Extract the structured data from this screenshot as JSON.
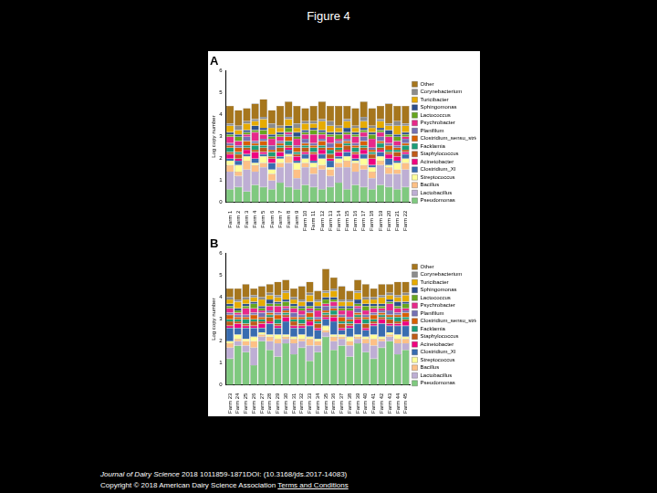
{
  "page": {
    "title": "Figure 4",
    "journal": "Journal of Dairy Science",
    "citation": "2018 1011859-1871DOI: (10.3168/jds.2017-14083)",
    "copyright": "Copyright © 2018 American Dairy Science Association",
    "link": "Terms and Conditions"
  },
  "chart_data": [
    {
      "type": "bar",
      "title": "A",
      "y_label": "Log copy number",
      "stacked": true,
      "grid": false,
      "legend": "right",
      "ylim": [
        0,
        6
      ],
      "yticks": [
        0,
        1,
        2,
        3,
        4,
        5,
        6
      ],
      "categories": [
        "Farm 1",
        "Farm 2",
        "Farm 3",
        "Farm 4",
        "Farm 5",
        "Farm 6",
        "Farm 7",
        "Farm 8",
        "Farm 9",
        "Farm 10",
        "Farm 11",
        "Farm 12",
        "Farm 13",
        "Farm 14",
        "Farm 15",
        "Farm 16",
        "Farm 17",
        "Farm 18",
        "Farm 19",
        "Farm 20",
        "Farm 21",
        "Farm 22"
      ],
      "series": [
        {
          "name": "Pseudomonas",
          "color": "#7fc97f",
          "values": [
            0.6,
            0.7,
            0.5,
            0.8,
            0.7,
            0.6,
            0.9,
            0.7,
            0.6,
            0.8,
            0.7,
            0.6,
            0.7,
            0.9,
            0.6,
            0.8,
            0.7,
            0.6,
            0.8,
            0.7,
            0.6,
            0.7
          ]
        },
        {
          "name": "Lactobacillus",
          "color": "#beaed4",
          "values": [
            0.8,
            0.5,
            1.0,
            0.6,
            0.9,
            0.4,
            0.7,
            1.1,
            0.5,
            0.8,
            0.6,
            0.9,
            0.5,
            0.7,
            1.0,
            0.6,
            0.8,
            0.5,
            0.9,
            0.6,
            0.7,
            0.8
          ]
        },
        {
          "name": "Bacillus",
          "color": "#fdc086",
          "values": [
            0.3,
            0.2,
            0.4,
            0.3,
            0.2,
            0.3,
            0.2,
            0.3,
            0.4,
            0.2,
            0.3,
            0.2,
            0.3,
            0.2,
            0.3,
            0.4,
            0.2,
            0.3,
            0.2,
            0.3,
            0.2,
            0.3
          ]
        },
        {
          "name": "Streptococcus",
          "color": "#ffff99",
          "values": [
            0.2,
            0.3,
            0.2,
            0.1,
            0.3,
            0.2,
            0.2,
            0.1,
            0.3,
            0.2,
            0.2,
            0.3,
            0.1,
            0.2,
            0.2,
            0.1,
            0.3,
            0.2,
            0.2,
            0.1,
            0.3,
            0.2
          ]
        },
        {
          "name": "Clostridium_XI",
          "color": "#386cb0",
          "values": [
            0.1,
            0.2,
            0.1,
            0.2,
            0.1,
            0.3,
            0.1,
            0.2,
            0.1,
            0.2,
            0.1,
            0.2,
            0.3,
            0.1,
            0.2,
            0.1,
            0.2,
            0.1,
            0.2,
            0.3,
            0.1,
            0.2
          ]
        },
        {
          "name": "Acinetobacter",
          "color": "#f0027f",
          "values": [
            0.2,
            0.1,
            0.2,
            0.3,
            0.1,
            0.2,
            0.2,
            0.1,
            0.2,
            0.1,
            0.3,
            0.2,
            0.1,
            0.2,
            0.1,
            0.2,
            0.2,
            0.3,
            0.1,
            0.2,
            0.2,
            0.1
          ]
        },
        {
          "name": "Staphylococcus",
          "color": "#bf5b17",
          "values": [
            0.1,
            0.2,
            0.1,
            0.1,
            0.2,
            0.1,
            0.2,
            0.1,
            0.1,
            0.2,
            0.1,
            0.1,
            0.2,
            0.1,
            0.2,
            0.1,
            0.1,
            0.2,
            0.1,
            0.1,
            0.2,
            0.1
          ]
        },
        {
          "name": "Facklamia",
          "color": "#1b9e77",
          "values": [
            0.2,
            0.1,
            0.1,
            0.2,
            0.1,
            0.2,
            0.1,
            0.2,
            0.1,
            0.1,
            0.2,
            0.1,
            0.2,
            0.1,
            0.1,
            0.2,
            0.1,
            0.1,
            0.2,
            0.1,
            0.1,
            0.2
          ]
        },
        {
          "name": "Clostridium_sensu_stricto",
          "color": "#d95f02",
          "values": [
            0.1,
            0.2,
            0.2,
            0.1,
            0.2,
            0.1,
            0.1,
            0.2,
            0.2,
            0.1,
            0.1,
            0.2,
            0.1,
            0.2,
            0.1,
            0.1,
            0.2,
            0.1,
            0.1,
            0.2,
            0.1,
            0.1
          ]
        },
        {
          "name": "Planifilum",
          "color": "#7570b3",
          "values": [
            0.1,
            0.1,
            0.2,
            0.1,
            0.1,
            0.2,
            0.1,
            0.1,
            0.1,
            0.2,
            0.1,
            0.1,
            0.2,
            0.1,
            0.1,
            0.1,
            0.2,
            0.1,
            0.2,
            0.1,
            0.1,
            0.2
          ]
        },
        {
          "name": "Psychrobacter",
          "color": "#e7298a",
          "values": [
            0.3,
            0.2,
            0.1,
            0.4,
            0.2,
            0.3,
            0.2,
            0.1,
            0.3,
            0.2,
            0.4,
            0.2,
            0.3,
            0.1,
            0.2,
            0.3,
            0.2,
            0.4,
            0.2,
            0.3,
            0.2,
            0.1
          ]
        },
        {
          "name": "Lactococcus",
          "color": "#66a61e",
          "values": [
            0.1,
            0.2,
            0.1,
            0.1,
            0.2,
            0.1,
            0.1,
            0.2,
            0.1,
            0.1,
            0.2,
            0.1,
            0.1,
            0.2,
            0.1,
            0.1,
            0.1,
            0.2,
            0.1,
            0.1,
            0.2,
            0.1
          ]
        },
        {
          "name": "Sphingomonas",
          "color": "#2c4f8c",
          "values": [
            0.1,
            0.1,
            0.1,
            0.2,
            0.1,
            0.1,
            0.1,
            0.1,
            0.2,
            0.1,
            0.1,
            0.1,
            0.1,
            0.1,
            0.2,
            0.1,
            0.1,
            0.1,
            0.1,
            0.2,
            0.1,
            0.1
          ]
        },
        {
          "name": "Turicibacter",
          "color": "#e6ab02",
          "values": [
            0.3,
            0.2,
            0.3,
            0.2,
            0.4,
            0.3,
            0.2,
            0.3,
            0.2,
            0.3,
            0.2,
            0.4,
            0.3,
            0.2,
            0.3,
            0.2,
            0.3,
            0.2,
            0.3,
            0.2,
            0.4,
            0.3
          ]
        },
        {
          "name": "Corynebacterium",
          "color": "#8c8c8c",
          "values": [
            0.1,
            0.2,
            0.1,
            0.1,
            0.1,
            0.2,
            0.1,
            0.1,
            0.2,
            0.1,
            0.1,
            0.1,
            0.2,
            0.1,
            0.1,
            0.1,
            0.2,
            0.1,
            0.1,
            0.1,
            0.2,
            0.1
          ]
        },
        {
          "name": "Other",
          "color": "#a6761d",
          "values": [
            0.8,
            0.7,
            0.6,
            0.7,
            0.8,
            0.6,
            0.9,
            0.7,
            0.8,
            0.6,
            0.7,
            0.8,
            0.7,
            0.9,
            0.6,
            0.8,
            0.7,
            0.8,
            0.6,
            0.9,
            0.7,
            0.8
          ]
        }
      ]
    },
    {
      "type": "bar",
      "title": "B",
      "y_label": "Log copy number",
      "stacked": true,
      "grid": false,
      "legend": "right",
      "ylim": [
        0,
        6
      ],
      "yticks": [
        0,
        1,
        2,
        3,
        4,
        5,
        6
      ],
      "categories": [
        "Farm 23",
        "Farm 24",
        "Farm 25",
        "Farm 26",
        "Farm 27",
        "Farm 28",
        "Farm 29",
        "Farm 30",
        "Farm 31",
        "Farm 32",
        "Farm 33",
        "Farm 34",
        "Farm 35",
        "Farm 36",
        "Farm 37",
        "Farm 38",
        "Farm 39",
        "Farm 40",
        "Farm 41",
        "Farm 42",
        "Farm 43",
        "Farm 44",
        "Farm 45"
      ],
      "series": [
        {
          "name": "Pseudomonas",
          "color": "#7fc97f",
          "values": [
            1.2,
            1.8,
            1.5,
            0.9,
            2.0,
            1.6,
            1.3,
            1.9,
            1.4,
            1.7,
            1.1,
            1.5,
            2.2,
            1.6,
            1.8,
            1.3,
            1.9,
            1.5,
            1.2,
            1.7,
            2.0,
            1.4,
            1.6
          ]
        },
        {
          "name": "Lactobacillus",
          "color": "#beaed4",
          "values": [
            0.5,
            0.2,
            0.3,
            0.8,
            0.2,
            0.4,
            0.6,
            0.2,
            0.5,
            0.3,
            0.7,
            0.3,
            0.2,
            0.4,
            0.3,
            0.5,
            0.2,
            0.4,
            0.6,
            0.3,
            0.2,
            0.5,
            0.3
          ]
        },
        {
          "name": "Bacillus",
          "color": "#fdc086",
          "values": [
            0.2,
            0.1,
            0.2,
            0.3,
            0.1,
            0.2,
            0.2,
            0.1,
            0.2,
            0.1,
            0.3,
            0.2,
            0.1,
            0.2,
            0.1,
            0.2,
            0.1,
            0.2,
            0.3,
            0.1,
            0.1,
            0.2,
            0.2
          ]
        },
        {
          "name": "Streptococcus",
          "color": "#ffff99",
          "values": [
            0.1,
            0.2,
            0.1,
            0.2,
            0.1,
            0.1,
            0.2,
            0.1,
            0.1,
            0.2,
            0.1,
            0.1,
            0.2,
            0.1,
            0.1,
            0.2,
            0.1,
            0.1,
            0.2,
            0.1,
            0.1,
            0.2,
            0.1
          ]
        },
        {
          "name": "Clostridium_XI",
          "color": "#386cb0",
          "values": [
            0.6,
            0.3,
            0.5,
            0.4,
            0.2,
            0.5,
            0.3,
            0.6,
            0.4,
            0.3,
            0.5,
            0.4,
            0.3,
            0.6,
            0.2,
            0.4,
            0.5,
            0.3,
            0.4,
            0.6,
            0.3,
            0.4,
            0.5
          ]
        },
        {
          "name": "Acinetobacter",
          "color": "#f0027f",
          "values": [
            0.1,
            0.2,
            0.1,
            0.1,
            0.2,
            0.1,
            0.1,
            0.2,
            0.1,
            0.1,
            0.2,
            0.1,
            0.1,
            0.2,
            0.1,
            0.1,
            0.2,
            0.1,
            0.1,
            0.2,
            0.1,
            0.1,
            0.2
          ]
        },
        {
          "name": "Staphylococcus",
          "color": "#bf5b17",
          "values": [
            0.2,
            0.1,
            0.1,
            0.2,
            0.1,
            0.2,
            0.1,
            0.1,
            0.2,
            0.1,
            0.1,
            0.2,
            0.1,
            0.1,
            0.2,
            0.1,
            0.1,
            0.2,
            0.1,
            0.1,
            0.2,
            0.1,
            0.1
          ]
        },
        {
          "name": "Facklamia",
          "color": "#1b9e77",
          "values": [
            0.1,
            0.1,
            0.2,
            0.1,
            0.1,
            0.1,
            0.2,
            0.1,
            0.1,
            0.2,
            0.1,
            0.1,
            0.1,
            0.2,
            0.1,
            0.1,
            0.1,
            0.2,
            0.1,
            0.1,
            0.1,
            0.2,
            0.1
          ]
        },
        {
          "name": "Clostridium_sensu_stricto",
          "color": "#d95f02",
          "values": [
            0.2,
            0.1,
            0.1,
            0.2,
            0.1,
            0.1,
            0.2,
            0.1,
            0.1,
            0.1,
            0.2,
            0.1,
            0.1,
            0.1,
            0.2,
            0.1,
            0.1,
            0.1,
            0.2,
            0.1,
            0.1,
            0.1,
            0.2
          ]
        },
        {
          "name": "Planifilum",
          "color": "#7570b3",
          "values": [
            0.1,
            0.1,
            0.1,
            0.1,
            0.2,
            0.1,
            0.1,
            0.1,
            0.2,
            0.1,
            0.1,
            0.1,
            0.2,
            0.1,
            0.1,
            0.1,
            0.2,
            0.1,
            0.1,
            0.1,
            0.2,
            0.1,
            0.1
          ]
        },
        {
          "name": "Psychrobacter",
          "color": "#e7298a",
          "values": [
            0.2,
            0.1,
            0.3,
            0.2,
            0.1,
            0.2,
            0.3,
            0.1,
            0.2,
            0.2,
            0.1,
            0.3,
            0.1,
            0.2,
            0.2,
            0.3,
            0.1,
            0.2,
            0.2,
            0.1,
            0.3,
            0.2,
            0.1
          ]
        },
        {
          "name": "Lactococcus",
          "color": "#66a61e",
          "values": [
            0.1,
            0.1,
            0.1,
            0.2,
            0.1,
            0.1,
            0.1,
            0.2,
            0.1,
            0.1,
            0.1,
            0.1,
            0.2,
            0.1,
            0.1,
            0.1,
            0.1,
            0.2,
            0.1,
            0.1,
            0.1,
            0.1,
            0.2
          ]
        },
        {
          "name": "Sphingomonas",
          "color": "#2c4f8c",
          "values": [
            0.1,
            0.1,
            0.1,
            0.1,
            0.1,
            0.2,
            0.1,
            0.1,
            0.1,
            0.1,
            0.2,
            0.1,
            0.1,
            0.1,
            0.1,
            0.1,
            0.2,
            0.1,
            0.1,
            0.1,
            0.1,
            0.2,
            0.1
          ]
        },
        {
          "name": "Turicibacter",
          "color": "#e6ab02",
          "values": [
            0.2,
            0.3,
            0.2,
            0.2,
            0.3,
            0.2,
            0.2,
            0.3,
            0.2,
            0.2,
            0.3,
            0.2,
            0.2,
            0.3,
            0.2,
            0.2,
            0.3,
            0.2,
            0.2,
            0.3,
            0.2,
            0.2,
            0.3
          ]
        },
        {
          "name": "Corynebacterium",
          "color": "#8c8c8c",
          "values": [
            0.1,
            0.1,
            0.1,
            0.1,
            0.1,
            0.1,
            0.1,
            0.1,
            0.1,
            0.1,
            0.1,
            0.1,
            0.1,
            0.1,
            0.1,
            0.1,
            0.1,
            0.1,
            0.1,
            0.1,
            0.1,
            0.1,
            0.1
          ]
        },
        {
          "name": "Other",
          "color": "#a6761d",
          "values": [
            0.4,
            0.5,
            0.6,
            0.3,
            0.5,
            0.4,
            0.6,
            0.5,
            0.4,
            0.6,
            0.5,
            0.4,
            1.0,
            0.5,
            0.6,
            0.4,
            0.5,
            0.6,
            0.4,
            0.5,
            0.4,
            0.6,
            0.5
          ]
        }
      ]
    }
  ]
}
